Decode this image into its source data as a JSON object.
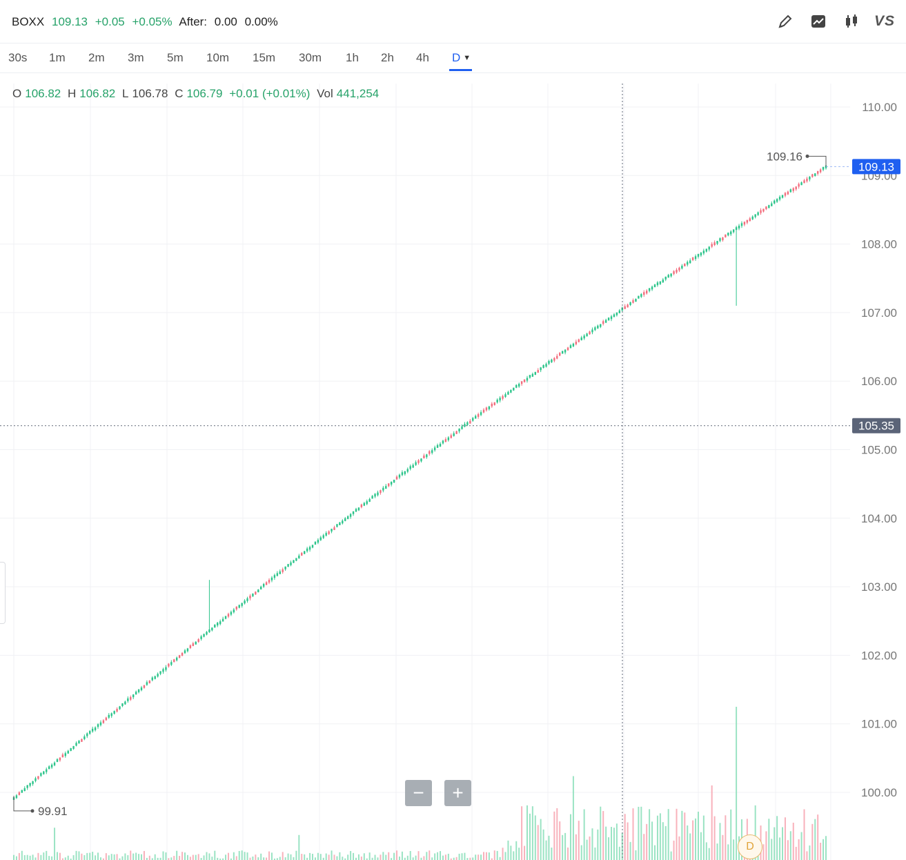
{
  "header": {
    "symbol": "BOXX",
    "price": "109.13",
    "change": "+0.05",
    "change_pct": "+0.05%",
    "after_label": "After:",
    "after_value": "0.00",
    "after_pct": "0.00%"
  },
  "toolbar": {
    "icons": [
      "pencil-icon",
      "trend-chart-icon",
      "candlestick-icon",
      "vs-compare"
    ],
    "vs_label": "VS"
  },
  "timeframes": [
    "30s",
    "1m",
    "2m",
    "3m",
    "5m",
    "10m",
    "15m",
    "30m",
    "1h",
    "2h",
    "4h",
    "D"
  ],
  "active_timeframe": "D",
  "ohlc": {
    "o_label": "O",
    "o": "106.82",
    "h_label": "H",
    "h": "106.82",
    "l_label": "L",
    "l": "106.78",
    "c_label": "C",
    "c": "106.79",
    "chg": "+0.01 (+0.01%)",
    "vol_label": "Vol",
    "vol": "441,254"
  },
  "zoom": {
    "minus": "−",
    "plus": "+"
  },
  "badge": "D",
  "colors": {
    "up": "#26a269",
    "up_candle": "#2bc48a",
    "down": "#f26d7d",
    "accent": "#1f5ff0",
    "crosshair": "#5e6675"
  },
  "chart_data": {
    "type": "candlestick",
    "ylim": [
      99.0,
      110.0
    ],
    "y_ticks": [
      "110.00",
      "109.00",
      "108.00",
      "107.00",
      "106.00",
      "105.00",
      "104.00",
      "103.00",
      "102.00",
      "101.00",
      "100.00"
    ],
    "start_value": 99.91,
    "end_value": 109.13,
    "bars": 300,
    "last_price_label": "109.13",
    "high_marker": "109.16",
    "low_marker": "99.91",
    "crosshair_price": "105.35",
    "spikes": [
      {
        "bar_fraction": 0.24,
        "high": 103.1
      },
      {
        "bar_fraction": 0.89,
        "low": 107.1
      }
    ],
    "grid": true
  }
}
